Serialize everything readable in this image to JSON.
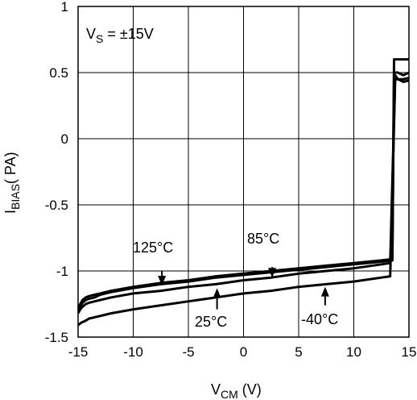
{
  "chart_data": {
    "type": "line",
    "title": "",
    "annotation": "V_S = ±15V",
    "annotation_main": "V",
    "annotation_sub": "S",
    "annotation_rest": " = ±15V",
    "xlabel_main": "V",
    "xlabel_sub": "CM",
    "xlabel_rest": " (V)",
    "ylabel_main": "I",
    "ylabel_sub": "BIAS",
    "ylabel_rest": "( PA)",
    "xlim": [
      -15,
      15
    ],
    "ylim": [
      -1.5,
      1
    ],
    "grid": true,
    "x_ticks": [
      -15,
      -10,
      -5,
      0,
      5,
      10,
      15
    ],
    "y_ticks": [
      1,
      0.5,
      0,
      -0.5,
      -1,
      -1.5
    ],
    "x_tick_labels": [
      "-15",
      "-10",
      "-5",
      "0",
      "5",
      "10",
      "15"
    ],
    "y_tick_labels": [
      "1",
      "0.5",
      "0",
      "-0.5",
      "-1",
      "-1.5"
    ],
    "series": [
      {
        "name": "125°C",
        "color": "#000000",
        "x": [
          -15,
          -14.8,
          -14.6,
          -14.3,
          -14,
          -13.5,
          -13,
          -12,
          -10,
          -7.5,
          -5,
          -2.5,
          0,
          2.5,
          5,
          7.5,
          10,
          12.5,
          13.5,
          13.65,
          13.75,
          14,
          14.5,
          15
        ],
        "y": [
          -1.28,
          -1.25,
          -1.22,
          -1.2,
          -1.19,
          -1.18,
          -1.17,
          -1.15,
          -1.12,
          -1.09,
          -1.07,
          -1.04,
          -1.02,
          -1.0,
          -0.98,
          -0.96,
          -0.94,
          -0.92,
          -0.91,
          0.6,
          0.6,
          0.6,
          0.6,
          0.6
        ]
      },
      {
        "name": "85°C",
        "color": "#000000",
        "x": [
          -15,
          -14.8,
          -14.6,
          -14.3,
          -14,
          -13.5,
          -13,
          -12,
          -10,
          -7.5,
          -5,
          -2.5,
          0,
          2.5,
          5,
          7.5,
          10,
          12.5,
          13.5,
          13.65,
          13.75,
          14,
          14.5,
          15
        ],
        "y": [
          -1.3,
          -1.27,
          -1.24,
          -1.22,
          -1.21,
          -1.2,
          -1.18,
          -1.16,
          -1.13,
          -1.1,
          -1.08,
          -1.05,
          -1.03,
          -1.01,
          -0.99,
          -0.97,
          -0.95,
          -0.93,
          -0.92,
          0.5,
          0.5,
          0.5,
          0.48,
          0.5
        ]
      },
      {
        "name": "25°C",
        "color": "#000000",
        "x": [
          -15,
          -14.8,
          -14.6,
          -14.3,
          -14,
          -13.5,
          -13,
          -12,
          -10,
          -7.5,
          -5,
          -2.5,
          0,
          2.5,
          5,
          7.5,
          10,
          12.5,
          13.3,
          13.75,
          14,
          14.5,
          15
        ],
        "y": [
          -1.32,
          -1.29,
          -1.27,
          -1.25,
          -1.24,
          -1.23,
          -1.22,
          -1.2,
          -1.17,
          -1.15,
          -1.12,
          -1.1,
          -1.07,
          -1.05,
          -1.02,
          -1.0,
          -0.98,
          -0.95,
          -0.94,
          0.48,
          0.45,
          0.45,
          0.46
        ]
      },
      {
        "name": "-40°C",
        "color": "#000000",
        "x": [
          -15,
          -14.7,
          -14.4,
          -14,
          -13.5,
          -13,
          -12,
          -10,
          -7.5,
          -5,
          -2.5,
          0,
          2.5,
          5,
          7.5,
          10,
          12.5,
          13.3,
          13.75,
          14,
          14.5,
          15
        ],
        "y": [
          -1.41,
          -1.39,
          -1.38,
          -1.36,
          -1.35,
          -1.34,
          -1.32,
          -1.29,
          -1.26,
          -1.23,
          -1.2,
          -1.17,
          -1.15,
          -1.12,
          -1.1,
          -1.08,
          -1.05,
          -1.04,
          0.45,
          0.45,
          0.43,
          0.44
        ]
      }
    ],
    "labels": [
      {
        "text": "125°C",
        "arrow_from": [
          -7.4,
          -1.0
        ],
        "arrow_to": [
          -7.4,
          -1.11
        ]
      },
      {
        "text": "85°C",
        "arrow_from": [
          2.6,
          -0.97
        ],
        "arrow_to": [
          2.6,
          -1.05
        ]
      },
      {
        "text": "25°C",
        "arrow_from": [
          -2.4,
          -1.29
        ],
        "arrow_to": [
          -2.4,
          -1.13
        ]
      },
      {
        "text": "-40°C",
        "arrow_from": [
          7.4,
          -1.26
        ],
        "arrow_to": [
          7.4,
          -1.12
        ]
      }
    ]
  }
}
